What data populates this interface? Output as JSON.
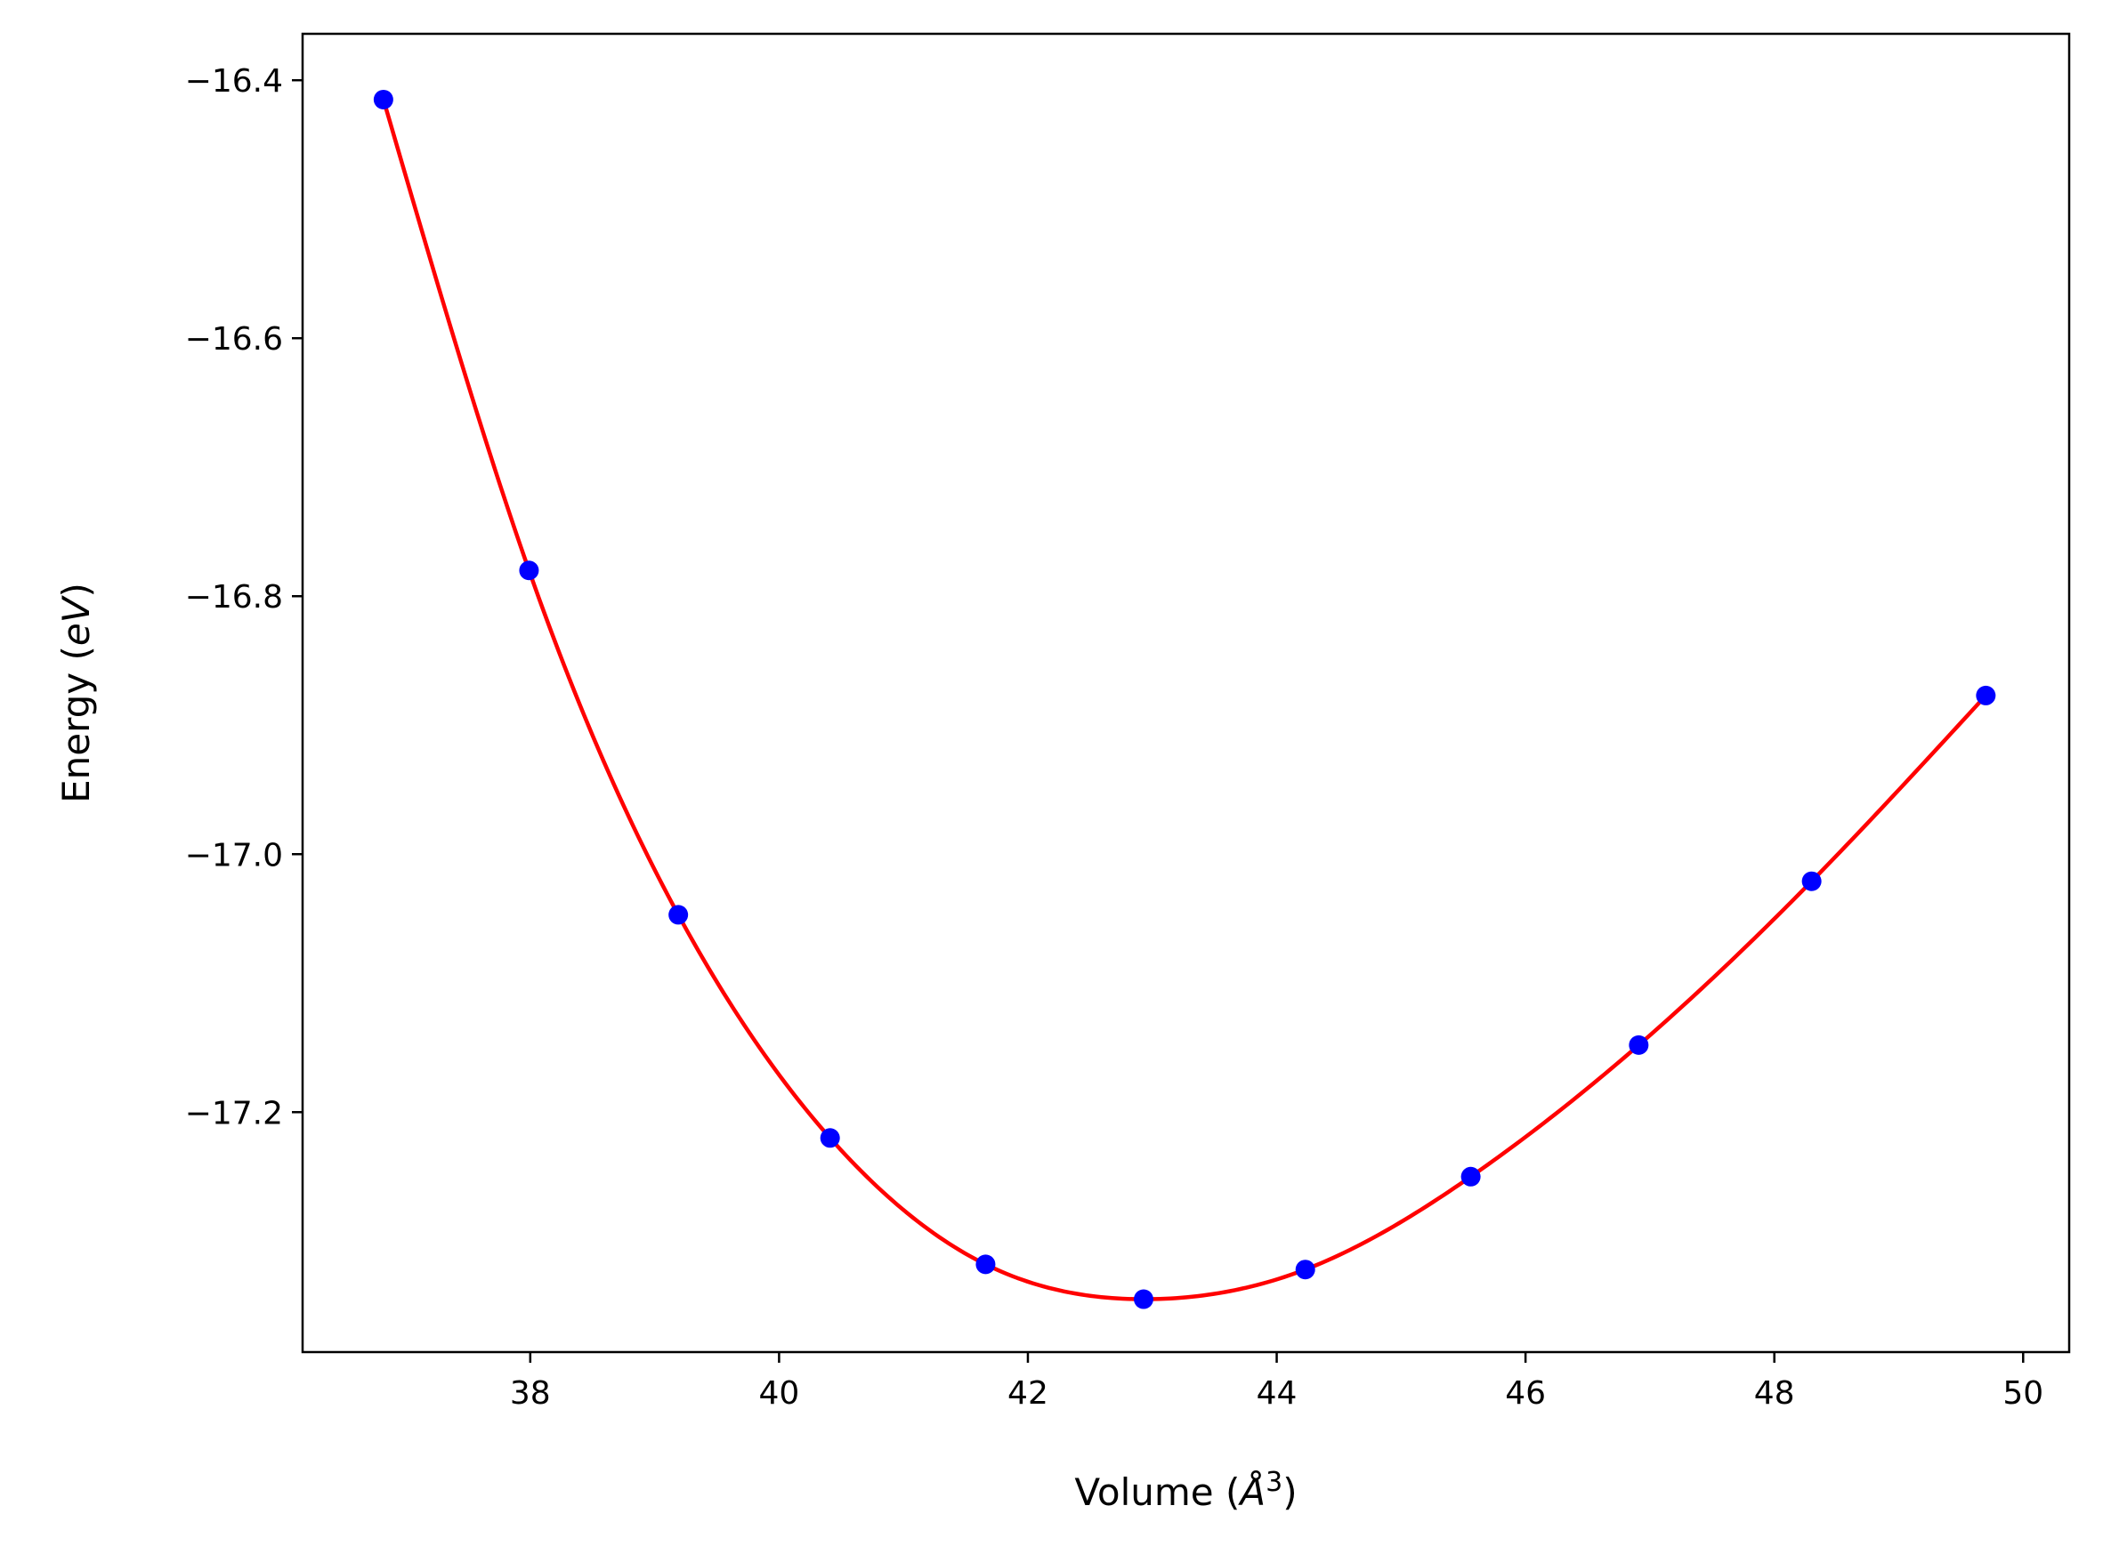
{
  "chart_data": {
    "type": "scatter",
    "title": "",
    "xlabel": "Volume (Å³)",
    "ylabel": "Energy (eV)",
    "xlabel_parts": {
      "prefix": "Volume (",
      "symbol": "Å",
      "exponent": "3",
      "suffix": ")"
    },
    "ylabel_parts": {
      "prefix": "Energy (",
      "unit": "eV",
      "suffix": ")"
    },
    "xlim": [
      36.17,
      50.37
    ],
    "ylim": [
      -17.386,
      -16.364
    ],
    "grid": false,
    "legend": "none",
    "x_ticks": [
      38,
      40,
      42,
      44,
      46,
      48,
      50
    ],
    "x_tick_labels": [
      "38",
      "40",
      "42",
      "44",
      "46",
      "48",
      "50"
    ],
    "y_ticks": [
      -16.4,
      -16.6,
      -16.8,
      -17.0,
      -17.2
    ],
    "y_tick_labels": [
      "−16.4",
      "−16.6",
      "−16.8",
      "−17.0",
      "−17.2"
    ],
    "series": [
      {
        "type": "scatter",
        "color": "#0000ff",
        "x": [
          36.82,
          37.99,
          39.19,
          40.41,
          41.66,
          42.93,
          44.23,
          45.56,
          46.91,
          48.3,
          49.7
        ],
        "y": [
          -16.415,
          -16.78,
          -17.047,
          -17.22,
          -17.318,
          -17.345,
          -17.322,
          -17.25,
          -17.148,
          -17.021,
          -16.877
        ]
      },
      {
        "type": "line",
        "color": "#ff0000",
        "fit": "cubic-spline through data points"
      }
    ]
  }
}
